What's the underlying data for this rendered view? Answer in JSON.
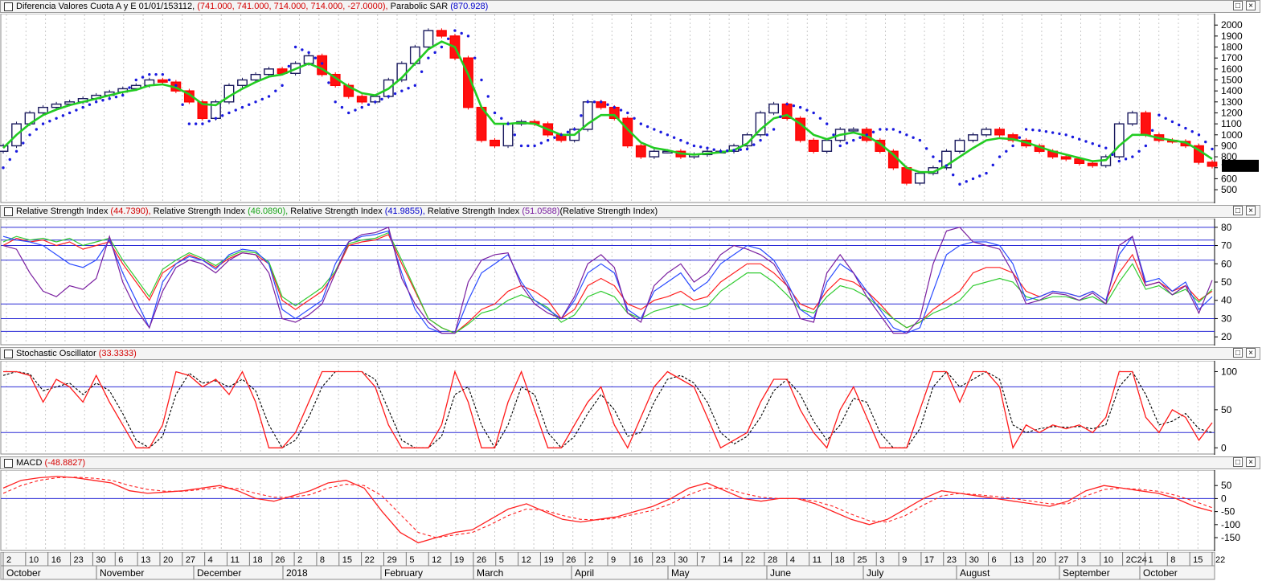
{
  "panels": {
    "price": {
      "title": "Diferencia Valores Cuota A y E 01/01/153112,",
      "ohlc": "(741.000, 741.000, 714.000, 714.000, -27.0000),",
      "sar_label": "Parabolic SAR",
      "sar_value": "(870.928)",
      "last_price": "714.00",
      "y_ticks": [
        "2000",
        "1900",
        "1800",
        "1700",
        "1600",
        "1500",
        "1400",
        "1300",
        "1200",
        "1100",
        "1000",
        "900",
        "800",
        "700",
        "600",
        "500"
      ]
    },
    "rsi": {
      "label1": "Relative Strength Index",
      "value1": "(44.7390),",
      "label2": "Relative Strength Index",
      "value2": "(46.0890),",
      "label3": "Relative Strength Index",
      "value3": "(41.9855),",
      "label4": "Relative Strength Index",
      "value4": "(51.0588)",
      "label5": "(Relative Strength Index)",
      "y_ticks": [
        "80",
        "70",
        "60",
        "50",
        "40",
        "30",
        "20"
      ]
    },
    "stoch": {
      "label": "Stochastic Oscillator",
      "value": "(33.3333)",
      "y_ticks": [
        "100",
        "50",
        "0"
      ]
    },
    "macd": {
      "label": "MACD",
      "value": "(-48.8827)",
      "y_ticks": [
        "50",
        "0",
        "-50",
        "-100",
        "-150"
      ]
    }
  },
  "window_buttons": {
    "restore": "□",
    "close": "×"
  },
  "x_axis": {
    "day_labels": [
      "2",
      "10",
      "16",
      "23",
      "30",
      "6",
      "13",
      "20",
      "27",
      "4",
      "11",
      "18",
      "26",
      "2",
      "8",
      "15",
      "22",
      "29",
      "5",
      "12",
      "19",
      "26",
      "5",
      "12",
      "19",
      "26",
      "2",
      "9",
      "16",
      "23",
      "30",
      "7",
      "14",
      "22",
      "28",
      "4",
      "11",
      "18",
      "25",
      "3",
      "9",
      "17",
      "23",
      "30",
      "6",
      "13",
      "20",
      "27",
      "3",
      "10",
      "2C24",
      "1",
      "8",
      "15",
      "22"
    ],
    "month_labels": [
      "October",
      "November",
      "December",
      "2018",
      "February",
      "March",
      "April",
      "May",
      "June",
      "July",
      "August",
      "September",
      "October"
    ]
  },
  "chart_data": [
    {
      "type": "candlestick",
      "title": "Diferencia Valores Cuota A y E",
      "ylim": [
        420,
        2060
      ],
      "series": [
        {
          "name": "Price close",
          "values": [
            900,
            1100,
            1200,
            1250,
            1280,
            1300,
            1330,
            1360,
            1390,
            1420,
            1450,
            1500,
            1480,
            1400,
            1300,
            1150,
            1300,
            1450,
            1500,
            1550,
            1600,
            1560,
            1650,
            1720,
            1550,
            1450,
            1350,
            1300,
            1350,
            1500,
            1650,
            1800,
            1950,
            1900,
            1700,
            1250,
            950,
            900,
            1100,
            1120,
            1100,
            1000,
            950,
            1050,
            1300,
            1250,
            1150,
            900,
            800,
            850,
            850,
            800,
            820,
            850,
            850,
            900,
            1000,
            1200,
            1280,
            1150,
            950,
            850,
            950,
            1050,
            1050,
            950,
            850,
            700,
            560,
            650,
            700,
            850,
            950,
            1000,
            1050,
            1000,
            950,
            900,
            850,
            800,
            780,
            740,
            720,
            800,
            1100,
            1200,
            1000,
            950,
            940,
            900,
            750,
            714
          ]
        },
        {
          "name": "Moving average",
          "values": [
            880,
            1000,
            1100,
            1180,
            1230,
            1270,
            1300,
            1330,
            1360,
            1390,
            1410,
            1450,
            1460,
            1430,
            1370,
            1280,
            1270,
            1350,
            1420,
            1480,
            1530,
            1550,
            1600,
            1650,
            1600,
            1520,
            1440,
            1380,
            1360,
            1420,
            1520,
            1650,
            1780,
            1850,
            1800,
            1550,
            1250,
            1100,
            1100,
            1110,
            1100,
            1050,
            1000,
            1000,
            1100,
            1180,
            1180,
            1050,
            930,
            880,
            860,
            830,
            820,
            830,
            840,
            860,
            920,
            1050,
            1150,
            1180,
            1100,
            1000,
            960,
            1000,
            1020,
            990,
            920,
            820,
            700,
            660,
            660,
            720,
            800,
            880,
            950,
            970,
            960,
            930,
            890,
            850,
            820,
            790,
            760,
            770,
            900,
            1000,
            1000,
            970,
            950,
            930,
            860,
            780
          ]
        },
        {
          "name": "Parabolic SAR",
          "values": [
            700,
            850,
            1000,
            1100,
            1150,
            1200,
            1250,
            1300,
            1330,
            1360,
            1500,
            1550,
            1550,
            1450,
            1100,
            1100,
            1150,
            1200,
            1250,
            1300,
            1350,
            1450,
            1800,
            1750,
            1650,
            1300,
            1200,
            1250,
            1300,
            1350,
            1400,
            1450,
            1700,
            1800,
            1950,
            1900,
            1500,
            1200,
            1100,
            900,
            900,
            950,
            1000,
            1050,
            1300,
            1300,
            1250,
            1200,
            1100,
            1050,
            1000,
            950,
            900,
            880,
            850,
            860,
            870,
            950,
            1050,
            1280,
            1250,
            1200,
            1100,
            900,
            950,
            1000,
            1050,
            1050,
            1000,
            950,
            800,
            720,
            550,
            600,
            650,
            800,
            900,
            1050,
            1040,
            1020,
            1000,
            960,
            920,
            880,
            760,
            800,
            900,
            1180,
            1120,
            1060,
            1000,
            871
          ]
        }
      ]
    },
    {
      "type": "line",
      "title": "Relative Strength Index",
      "ylim": [
        17,
        83
      ],
      "series": [
        {
          "name": "Relative Strength Index",
          "values": [
            70,
            74,
            72,
            73,
            70,
            72,
            68,
            70,
            72,
            60,
            50,
            40,
            55,
            60,
            65,
            62,
            58,
            63,
            66,
            65,
            60,
            40,
            35,
            40,
            45,
            55,
            70,
            72,
            73,
            76,
            60,
            45,
            30,
            25,
            22,
            28,
            35,
            38,
            45,
            48,
            45,
            40,
            30,
            35,
            48,
            52,
            48,
            38,
            35,
            40,
            42,
            45,
            40,
            42,
            50,
            55,
            60,
            60,
            55,
            48,
            38,
            35,
            45,
            52,
            50,
            45,
            38,
            30,
            25,
            28,
            35,
            40,
            45,
            55,
            58,
            58,
            55,
            45,
            42,
            45,
            44,
            42,
            45,
            40,
            55,
            65,
            48,
            50,
            45,
            48,
            40,
            45
          ]
        },
        {
          "name": "Relative Strength Index",
          "values": [
            72,
            75,
            73,
            74,
            72,
            74,
            70,
            72,
            74,
            62,
            52,
            42,
            57,
            62,
            66,
            63,
            59,
            64,
            67,
            66,
            61,
            42,
            37,
            42,
            47,
            56,
            71,
            73,
            74,
            77,
            62,
            46,
            30,
            25,
            22,
            27,
            33,
            35,
            40,
            43,
            40,
            36,
            28,
            32,
            42,
            45,
            42,
            33,
            30,
            34,
            36,
            38,
            35,
            37,
            45,
            50,
            55,
            55,
            50,
            43,
            35,
            33,
            42,
            48,
            46,
            42,
            36,
            30,
            25,
            28,
            33,
            36,
            40,
            48,
            50,
            52,
            50,
            42,
            40,
            42,
            42,
            40,
            42,
            38,
            50,
            60,
            46,
            48,
            43,
            46,
            39,
            46
          ]
        },
        {
          "name": "Relative Strength Index",
          "values": [
            75,
            73,
            72,
            70,
            65,
            60,
            58,
            62,
            73,
            55,
            40,
            25,
            50,
            60,
            64,
            62,
            57,
            65,
            68,
            67,
            60,
            35,
            30,
            35,
            40,
            60,
            72,
            75,
            76,
            78,
            55,
            35,
            25,
            22,
            22,
            40,
            55,
            60,
            65,
            50,
            40,
            35,
            30,
            40,
            55,
            60,
            55,
            35,
            30,
            45,
            50,
            55,
            45,
            50,
            60,
            65,
            70,
            68,
            62,
            50,
            35,
            30,
            50,
            60,
            55,
            45,
            35,
            25,
            22,
            25,
            45,
            65,
            70,
            72,
            72,
            70,
            60,
            40,
            42,
            45,
            44,
            42,
            45,
            40,
            65,
            75,
            50,
            52,
            45,
            50,
            35,
            42
          ]
        },
        {
          "name": "Relative Strength Index",
          "values": [
            70,
            68,
            55,
            45,
            42,
            48,
            46,
            52,
            75,
            50,
            35,
            25,
            45,
            58,
            62,
            60,
            55,
            62,
            66,
            65,
            55,
            30,
            28,
            32,
            38,
            55,
            72,
            76,
            77,
            80,
            52,
            38,
            28,
            22,
            22,
            50,
            62,
            65,
            66,
            48,
            38,
            33,
            30,
            42,
            60,
            65,
            58,
            33,
            28,
            48,
            55,
            60,
            50,
            55,
            65,
            70,
            68,
            65,
            60,
            48,
            30,
            28,
            55,
            65,
            55,
            42,
            32,
            22,
            22,
            30,
            60,
            78,
            80,
            72,
            70,
            68,
            55,
            38,
            40,
            44,
            43,
            40,
            44,
            38,
            70,
            75,
            48,
            50,
            43,
            48,
            33,
            51
          ]
        }
      ]
    },
    {
      "type": "line",
      "title": "Stochastic Oscillator",
      "ylim": [
        -5,
        110
      ],
      "series": [
        {
          "name": "Stochastic Oscillator",
          "values": [
            100,
            100,
            95,
            60,
            90,
            80,
            60,
            95,
            60,
            30,
            0,
            0,
            30,
            100,
            95,
            80,
            90,
            70,
            100,
            60,
            0,
            0,
            20,
            60,
            100,
            100,
            100,
            100,
            80,
            30,
            0,
            0,
            0,
            30,
            100,
            60,
            0,
            0,
            60,
            100,
            50,
            0,
            0,
            30,
            60,
            80,
            30,
            0,
            40,
            80,
            100,
            90,
            80,
            40,
            0,
            10,
            20,
            60,
            90,
            90,
            50,
            20,
            0,
            50,
            80,
            40,
            0,
            0,
            0,
            50,
            100,
            100,
            60,
            100,
            100,
            80,
            0,
            30,
            20,
            30,
            25,
            30,
            20,
            40,
            100,
            100,
            40,
            20,
            50,
            40,
            10,
            33
          ]
        },
        {
          "name": "Signal",
          "values": [
            95,
            100,
            97,
            75,
            80,
            85,
            70,
            85,
            75,
            45,
            10,
            0,
            15,
            70,
            98,
            85,
            88,
            80,
            90,
            75,
            30,
            0,
            10,
            40,
            80,
            100,
            100,
            100,
            90,
            50,
            10,
            0,
            0,
            15,
            70,
            80,
            30,
            0,
            30,
            80,
            70,
            20,
            0,
            15,
            45,
            70,
            50,
            15,
            20,
            60,
            90,
            95,
            85,
            60,
            20,
            5,
            15,
            40,
            75,
            90,
            70,
            35,
            10,
            30,
            65,
            60,
            20,
            0,
            0,
            25,
            80,
            100,
            80,
            90,
            100,
            90,
            30,
            20,
            25,
            28,
            27,
            28,
            25,
            30,
            80,
            100,
            70,
            30,
            35,
            45,
            25,
            20
          ]
        }
      ]
    },
    {
      "type": "line",
      "title": "MACD",
      "ylim": [
        -190,
        100
      ],
      "series": [
        {
          "name": "MACD",
          "values": [
            40,
            70,
            80,
            85,
            80,
            70,
            60,
            30,
            20,
            25,
            30,
            40,
            50,
            30,
            0,
            -10,
            10,
            30,
            60,
            70,
            40,
            -50,
            -130,
            -170,
            -150,
            -130,
            -120,
            -80,
            -40,
            -20,
            -50,
            -80,
            -90,
            -80,
            -70,
            -50,
            -30,
            0,
            40,
            60,
            30,
            0,
            -10,
            0,
            0,
            -20,
            -50,
            -80,
            -100,
            -80,
            -40,
            0,
            30,
            20,
            10,
            0,
            -10,
            -20,
            -30,
            -10,
            30,
            50,
            40,
            30,
            20,
            0,
            -30,
            -49
          ]
        },
        {
          "name": "Signal",
          "values": [
            20,
            50,
            70,
            80,
            82,
            78,
            70,
            50,
            35,
            28,
            28,
            35,
            42,
            38,
            20,
            5,
            5,
            15,
            40,
            55,
            50,
            10,
            -60,
            -130,
            -150,
            -140,
            -130,
            -100,
            -65,
            -40,
            -45,
            -65,
            -80,
            -82,
            -75,
            -60,
            -45,
            -20,
            15,
            40,
            40,
            20,
            5,
            0,
            0,
            -10,
            -30,
            -60,
            -85,
            -90,
            -65,
            -25,
            10,
            20,
            15,
            8,
            0,
            -10,
            -20,
            -20,
            10,
            35,
            40,
            35,
            28,
            12,
            -10,
            -35
          ]
        }
      ]
    }
  ]
}
